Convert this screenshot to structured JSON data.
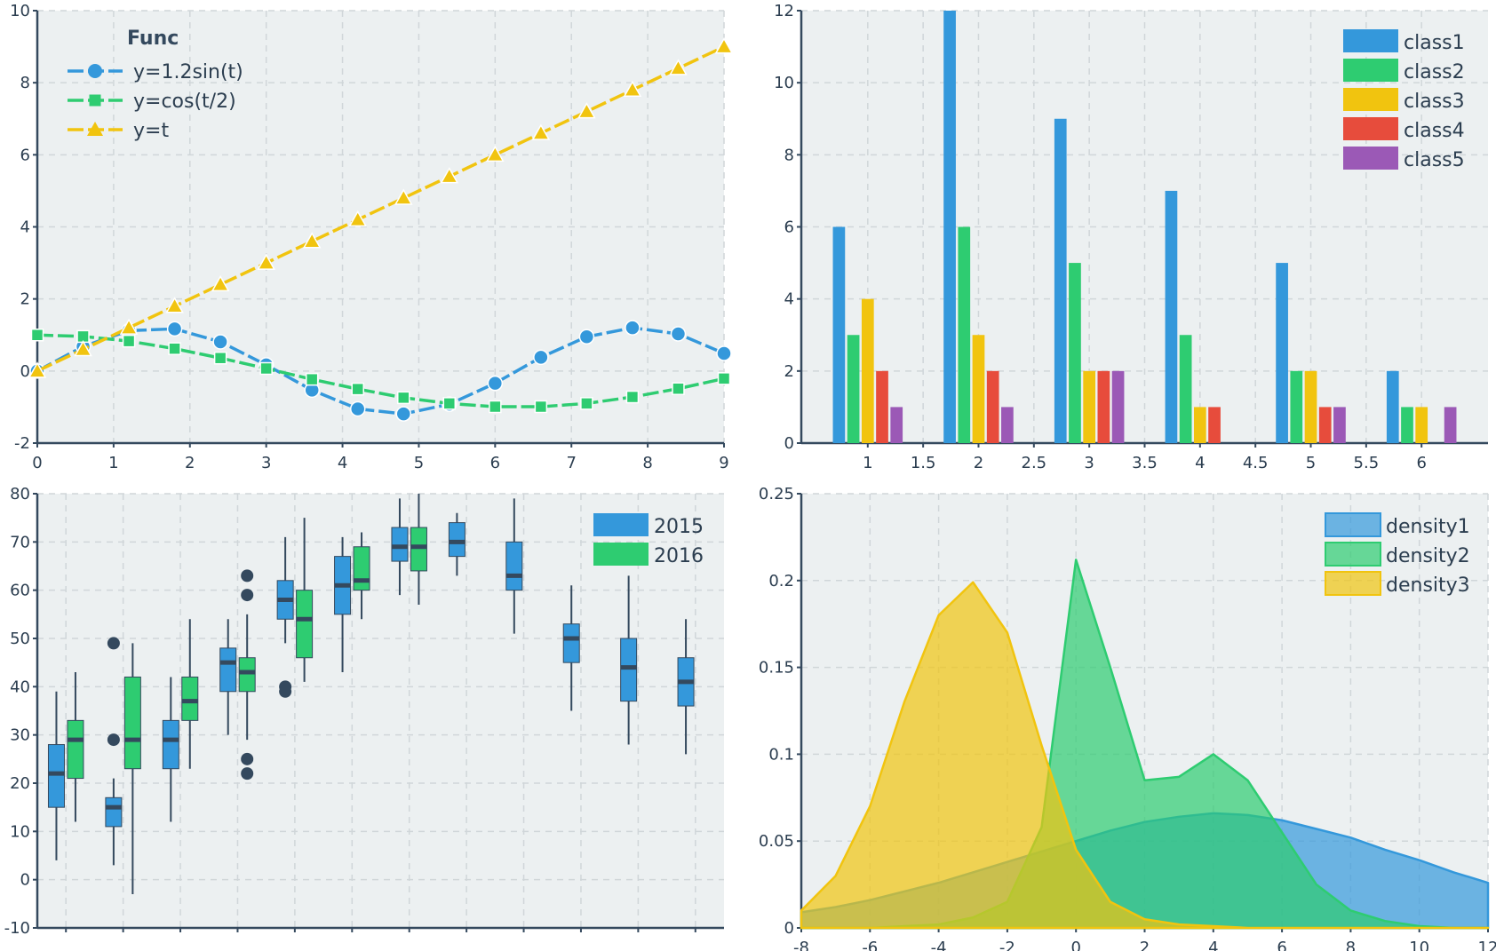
{
  "chart_data": [
    {
      "type": "line",
      "title": "",
      "xlabel": "",
      "ylabel": "",
      "xlim": [
        0,
        9
      ],
      "ylim": [
        -2,
        10
      ],
      "xticks": [
        "0",
        "1",
        "2",
        "3",
        "4",
        "5",
        "6",
        "7",
        "8",
        "9"
      ],
      "yticks": [
        "-2",
        "0",
        "2",
        "4",
        "6",
        "8",
        "10"
      ],
      "grid": true,
      "legend": {
        "title": "Func",
        "placement": "top-left"
      },
      "x": [
        0,
        0.6,
        1.2,
        1.8,
        2.4,
        3.0,
        3.6,
        4.2,
        4.8,
        5.4,
        6.0,
        6.6,
        7.2,
        7.8,
        8.4,
        9.0
      ],
      "series": [
        {
          "name": "y=1.2sin(t)",
          "marker": "circle",
          "color": "#3498db",
          "values": [
            0.0,
            0.68,
            1.12,
            1.17,
            0.81,
            0.17,
            -0.53,
            -1.05,
            -1.19,
            -0.92,
            -0.34,
            0.38,
            0.95,
            1.2,
            1.03,
            0.49
          ]
        },
        {
          "name": "y=cos(t/2)",
          "marker": "square",
          "color": "#2ecc71",
          "values": [
            1.0,
            0.96,
            0.83,
            0.62,
            0.36,
            0.07,
            -0.23,
            -0.5,
            -0.74,
            -0.9,
            -0.99,
            -0.99,
            -0.9,
            -0.72,
            -0.49,
            -0.21
          ]
        },
        {
          "name": "y=t",
          "marker": "triangle",
          "color": "#f1c40f",
          "values": [
            0.0,
            0.6,
            1.2,
            1.8,
            2.4,
            3.0,
            3.6,
            4.2,
            4.8,
            5.4,
            6.0,
            6.6,
            7.2,
            7.8,
            8.4,
            9.0
          ]
        }
      ]
    },
    {
      "type": "bar",
      "title": "",
      "xlabel": "",
      "ylabel": "",
      "xlim": [
        0.4,
        6.6
      ],
      "ylim": [
        0,
        12
      ],
      "xticks": [
        "1",
        "1.5",
        "2",
        "2.5",
        "3",
        "3.5",
        "4",
        "4.5",
        "5",
        "5.5",
        "6"
      ],
      "yticks": [
        "0",
        "2",
        "4",
        "6",
        "8",
        "10",
        "12"
      ],
      "grid": true,
      "legend": {
        "placement": "top-right"
      },
      "categories": [
        "1",
        "2",
        "3",
        "4",
        "5",
        "6"
      ],
      "series": [
        {
          "name": "class1",
          "color": "#3498db",
          "values": [
            6,
            12,
            9,
            7,
            5,
            2
          ]
        },
        {
          "name": "class2",
          "color": "#2ecc71",
          "values": [
            3,
            6,
            5,
            3,
            2,
            1
          ]
        },
        {
          "name": "class3",
          "color": "#f1c40f",
          "values": [
            4,
            3,
            2,
            1,
            2,
            1
          ]
        },
        {
          "name": "class4",
          "color": "#e74c3c",
          "values": [
            2,
            2,
            2,
            1,
            1,
            0
          ]
        },
        {
          "name": "class5",
          "color": "#9b59b6",
          "values": [
            1,
            1,
            2,
            0,
            1,
            1
          ]
        }
      ]
    },
    {
      "type": "box",
      "title": "",
      "xlabel": "",
      "ylabel": "",
      "ylim": [
        -10,
        80
      ],
      "yticks": [
        "-10",
        "0",
        "10",
        "20",
        "30",
        "40",
        "50",
        "60",
        "70",
        "80"
      ],
      "grid": true,
      "legend": {
        "placement": "top-right"
      },
      "series": [
        {
          "name": "2015",
          "color": "#3498db"
        },
        {
          "name": "2016",
          "color": "#2ecc71"
        }
      ],
      "boxes": [
        {
          "series": "2015",
          "x": 0.5,
          "whisker_low": 4,
          "q1": 15,
          "median": 22,
          "q3": 28,
          "whisker_high": 39,
          "outliers": []
        },
        {
          "series": "2016",
          "x": 1.0,
          "whisker_low": 12,
          "q1": 21,
          "median": 29,
          "q3": 33,
          "whisker_high": 43,
          "outliers": []
        },
        {
          "series": "2015",
          "x": 2.0,
          "whisker_low": 3,
          "q1": 11,
          "median": 15,
          "q3": 17,
          "whisker_high": 21,
          "outliers": [
            49,
            29
          ]
        },
        {
          "series": "2016",
          "x": 2.5,
          "whisker_low": -3,
          "q1": 23,
          "median": 29,
          "q3": 42,
          "whisker_high": 49,
          "outliers": []
        },
        {
          "series": "2015",
          "x": 3.5,
          "whisker_low": 12,
          "q1": 23,
          "median": 29,
          "q3": 33,
          "whisker_high": 42,
          "outliers": []
        },
        {
          "series": "2016",
          "x": 4.0,
          "whisker_low": 23,
          "q1": 33,
          "median": 37,
          "q3": 42,
          "whisker_high": 54,
          "outliers": []
        },
        {
          "series": "2015",
          "x": 5.0,
          "whisker_low": 30,
          "q1": 39,
          "median": 45,
          "q3": 48,
          "whisker_high": 54,
          "outliers": []
        },
        {
          "series": "2016",
          "x": 5.5,
          "whisker_low": 29,
          "q1": 39,
          "median": 43,
          "q3": 46,
          "whisker_high": 55,
          "outliers": [
            63,
            59,
            25,
            22
          ]
        },
        {
          "series": "2015",
          "x": 6.5,
          "whisker_low": 49,
          "q1": 54,
          "median": 58,
          "q3": 62,
          "whisker_high": 71,
          "outliers": [
            40,
            39
          ]
        },
        {
          "series": "2016",
          "x": 7.0,
          "whisker_low": 41,
          "q1": 46,
          "median": 54,
          "q3": 60,
          "whisker_high": 75,
          "outliers": []
        },
        {
          "series": "2015",
          "x": 8.0,
          "whisker_low": 43,
          "q1": 55,
          "median": 61,
          "q3": 67,
          "whisker_high": 71,
          "outliers": []
        },
        {
          "series": "2016",
          "x": 8.5,
          "whisker_low": 54,
          "q1": 60,
          "median": 62,
          "q3": 69,
          "whisker_high": 72,
          "outliers": []
        },
        {
          "series": "2015",
          "x": 9.5,
          "whisker_low": 59,
          "q1": 66,
          "median": 69,
          "q3": 73,
          "whisker_high": 79,
          "outliers": []
        },
        {
          "series": "2016",
          "x": 10.0,
          "whisker_low": 57,
          "q1": 64,
          "median": 69,
          "q3": 73,
          "whisker_high": 80,
          "outliers": []
        },
        {
          "series": "2015",
          "x": 11.0,
          "whisker_low": 63,
          "q1": 67,
          "median": 70,
          "q3": 74,
          "whisker_high": 76,
          "outliers": []
        },
        {
          "series": "2015",
          "x": 12.5,
          "whisker_low": 51,
          "q1": 60,
          "median": 63,
          "q3": 70,
          "whisker_high": 79,
          "outliers": []
        },
        {
          "series": "2015",
          "x": 14.0,
          "whisker_low": 35,
          "q1": 45,
          "median": 50,
          "q3": 53,
          "whisker_high": 61,
          "outliers": []
        },
        {
          "series": "2015",
          "x": 15.5,
          "whisker_low": 28,
          "q1": 37,
          "median": 44,
          "q3": 50,
          "whisker_high": 63,
          "outliers": []
        },
        {
          "series": "2015",
          "x": 17.0,
          "whisker_low": 26,
          "q1": 36,
          "median": 41,
          "q3": 46,
          "whisker_high": 54,
          "outliers": []
        }
      ]
    },
    {
      "type": "area",
      "title": "",
      "xlabel": "",
      "ylabel": "",
      "xlim": [
        -8,
        12
      ],
      "ylim": [
        0,
        0.25
      ],
      "xticks": [
        "-8",
        "-6",
        "-4",
        "-2",
        "0",
        "2",
        "4",
        "6",
        "8",
        "10",
        "12"
      ],
      "yticks": [
        "0",
        "0.05",
        "0.1",
        "0.15",
        "0.2",
        "0.25"
      ],
      "grid": true,
      "legend": {
        "placement": "top-right"
      },
      "x": [
        -8,
        -7,
        -6,
        -5,
        -4,
        -3,
        -2,
        -1,
        0,
        1,
        2,
        3,
        4,
        5,
        6,
        7,
        8,
        9,
        10,
        11,
        12
      ],
      "series": [
        {
          "name": "density1",
          "color": "#3498db",
          "values": [
            0.009,
            0.012,
            0.016,
            0.021,
            0.026,
            0.032,
            0.038,
            0.044,
            0.05,
            0.056,
            0.061,
            0.064,
            0.066,
            0.065,
            0.062,
            0.057,
            0.052,
            0.045,
            0.039,
            0.032,
            0.026
          ]
        },
        {
          "name": "density2",
          "color": "#2ecc71",
          "values": [
            0.0,
            0.0,
            0.0,
            0.001,
            0.002,
            0.006,
            0.015,
            0.058,
            0.212,
            0.15,
            0.085,
            0.087,
            0.1,
            0.085,
            0.055,
            0.025,
            0.01,
            0.004,
            0.001,
            0.0,
            0.0
          ]
        },
        {
          "name": "density3",
          "color": "#f1c40f",
          "values": [
            0.01,
            0.03,
            0.07,
            0.13,
            0.18,
            0.199,
            0.17,
            0.105,
            0.045,
            0.015,
            0.005,
            0.002,
            0.001,
            0.0,
            0.0,
            0.0,
            0.0,
            0.0,
            0.0,
            0.0,
            0.0
          ]
        }
      ]
    }
  ]
}
